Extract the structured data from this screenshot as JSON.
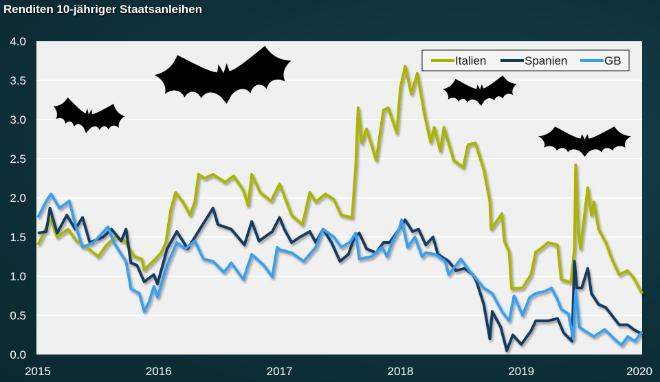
{
  "chart_data": {
    "type": "line",
    "title": "Renditen 10-jähriger Staatsanleihen",
    "xlabel": "",
    "ylabel": "",
    "xlim": [
      2015,
      2020
    ],
    "ylim": [
      0,
      4
    ],
    "xticks": [
      "2015",
      "2016",
      "2017",
      "2018",
      "2019",
      "2020"
    ],
    "yticks": [
      "0.0",
      "0.5",
      "1.0",
      "1.5",
      "2.0",
      "2.5",
      "3.0",
      "3.5",
      "4.0"
    ],
    "grid": true,
    "legend": "top-right",
    "decorations": [
      "bat-icon",
      "bat-icon",
      "bat-icon",
      "bat-icon"
    ],
    "series": [
      {
        "name": "Italien",
        "color": "#a9b500",
        "points": [
          [
            2015.0,
            1.4
          ],
          [
            2015.05,
            1.55
          ],
          [
            2015.1,
            1.75
          ],
          [
            2015.16,
            1.5
          ],
          [
            2015.25,
            1.6
          ],
          [
            2015.32,
            1.45
          ],
          [
            2015.42,
            1.35
          ],
          [
            2015.5,
            1.25
          ],
          [
            2015.57,
            1.4
          ],
          [
            2015.64,
            1.5
          ],
          [
            2015.72,
            1.45
          ],
          [
            2015.8,
            1.25
          ],
          [
            2015.86,
            1.22
          ],
          [
            2015.88,
            1.08
          ],
          [
            2015.96,
            1.2
          ],
          [
            2016.02,
            1.3
          ],
          [
            2016.06,
            1.43
          ],
          [
            2016.1,
            1.85
          ],
          [
            2016.14,
            2.07
          ],
          [
            2016.2,
            1.95
          ],
          [
            2016.26,
            1.78
          ],
          [
            2016.3,
            1.95
          ],
          [
            2016.33,
            2.3
          ],
          [
            2016.38,
            2.25
          ],
          [
            2016.45,
            2.3
          ],
          [
            2016.55,
            2.2
          ],
          [
            2016.62,
            2.28
          ],
          [
            2016.7,
            2.1
          ],
          [
            2016.74,
            1.9
          ],
          [
            2016.77,
            2.3
          ],
          [
            2016.84,
            2.07
          ],
          [
            2016.93,
            1.96
          ],
          [
            2017.0,
            2.18
          ],
          [
            2017.1,
            1.78
          ],
          [
            2017.19,
            1.66
          ],
          [
            2017.25,
            2.07
          ],
          [
            2017.3,
            1.95
          ],
          [
            2017.38,
            2.05
          ],
          [
            2017.45,
            1.98
          ],
          [
            2017.51,
            1.78
          ],
          [
            2017.6,
            1.75
          ],
          [
            2017.63,
            2.4
          ],
          [
            2017.65,
            3.15
          ],
          [
            2017.68,
            2.7
          ],
          [
            2017.72,
            2.88
          ],
          [
            2017.8,
            2.48
          ],
          [
            2017.86,
            3.12
          ],
          [
            2017.9,
            3.15
          ],
          [
            2017.97,
            2.83
          ],
          [
            2018.0,
            3.41
          ],
          [
            2018.04,
            3.68
          ],
          [
            2018.09,
            3.33
          ],
          [
            2018.14,
            3.59
          ],
          [
            2018.2,
            3.06
          ],
          [
            2018.25,
            2.71
          ],
          [
            2018.28,
            2.9
          ],
          [
            2018.33,
            2.6
          ],
          [
            2018.36,
            2.9
          ],
          [
            2018.44,
            2.48
          ],
          [
            2018.52,
            2.39
          ],
          [
            2018.56,
            2.68
          ],
          [
            2018.62,
            2.7
          ],
          [
            2018.69,
            2.36
          ],
          [
            2018.74,
            1.96
          ],
          [
            2018.75,
            1.6
          ],
          [
            2018.84,
            1.8
          ],
          [
            2018.86,
            1.45
          ],
          [
            2018.9,
            1.31
          ],
          [
            2018.92,
            0.84
          ],
          [
            2019.01,
            0.85
          ],
          [
            2019.08,
            1.02
          ],
          [
            2019.12,
            1.31
          ],
          [
            2019.16,
            1.35
          ],
          [
            2019.22,
            1.43
          ],
          [
            2019.3,
            1.4
          ],
          [
            2019.33,
            0.96
          ],
          [
            2019.41,
            0.92
          ],
          [
            2019.44,
            1.35
          ],
          [
            2019.45,
            2.42
          ],
          [
            2019.47,
            1.6
          ],
          [
            2019.49,
            1.35
          ],
          [
            2019.55,
            2.13
          ],
          [
            2019.58,
            1.78
          ],
          [
            2019.6,
            1.95
          ],
          [
            2019.64,
            1.6
          ],
          [
            2019.7,
            1.43
          ],
          [
            2019.75,
            1.22
          ],
          [
            2019.81,
            1.02
          ],
          [
            2019.88,
            1.07
          ],
          [
            2019.93,
            0.98
          ],
          [
            2020.0,
            0.78
          ]
        ]
      },
      {
        "name": "Spanien",
        "color": "#163a5f",
        "points": [
          [
            2015.0,
            1.55
          ],
          [
            2015.07,
            1.57
          ],
          [
            2015.1,
            1.87
          ],
          [
            2015.16,
            1.55
          ],
          [
            2015.24,
            1.78
          ],
          [
            2015.31,
            1.6
          ],
          [
            2015.37,
            1.75
          ],
          [
            2015.43,
            1.43
          ],
          [
            2015.54,
            1.5
          ],
          [
            2015.61,
            1.6
          ],
          [
            2015.69,
            1.45
          ],
          [
            2015.73,
            1.6
          ],
          [
            2015.77,
            1.17
          ],
          [
            2015.82,
            1.14
          ],
          [
            2015.88,
            0.93
          ],
          [
            2015.96,
            1.02
          ],
          [
            2015.99,
            0.9
          ],
          [
            2016.07,
            1.35
          ],
          [
            2016.15,
            1.57
          ],
          [
            2016.24,
            1.35
          ],
          [
            2016.34,
            1.6
          ],
          [
            2016.45,
            1.87
          ],
          [
            2016.49,
            1.66
          ],
          [
            2016.6,
            1.6
          ],
          [
            2016.71,
            1.4
          ],
          [
            2016.77,
            1.7
          ],
          [
            2016.83,
            1.45
          ],
          [
            2016.94,
            1.57
          ],
          [
            2017.0,
            1.75
          ],
          [
            2017.04,
            1.6
          ],
          [
            2017.1,
            1.43
          ],
          [
            2017.17,
            1.5
          ],
          [
            2017.25,
            1.57
          ],
          [
            2017.3,
            1.43
          ],
          [
            2017.36,
            1.6
          ],
          [
            2017.43,
            1.43
          ],
          [
            2017.5,
            1.19
          ],
          [
            2017.57,
            1.28
          ],
          [
            2017.62,
            1.5
          ],
          [
            2017.66,
            1.55
          ],
          [
            2017.72,
            1.35
          ],
          [
            2017.8,
            1.3
          ],
          [
            2017.86,
            1.43
          ],
          [
            2017.91,
            1.43
          ],
          [
            2017.99,
            1.6
          ],
          [
            2018.04,
            1.72
          ],
          [
            2018.1,
            1.57
          ],
          [
            2018.15,
            1.6
          ],
          [
            2018.21,
            1.4
          ],
          [
            2018.27,
            1.5
          ],
          [
            2018.31,
            1.28
          ],
          [
            2018.4,
            1.19
          ],
          [
            2018.46,
            1.07
          ],
          [
            2018.53,
            1.1
          ],
          [
            2018.6,
            1.02
          ],
          [
            2018.63,
            0.93
          ],
          [
            2018.69,
            0.64
          ],
          [
            2018.74,
            0.2
          ],
          [
            2018.76,
            0.55
          ],
          [
            2018.83,
            0.35
          ],
          [
            2018.88,
            0.05
          ],
          [
            2018.93,
            0.25
          ],
          [
            2019.0,
            0.13
          ],
          [
            2019.08,
            0.3
          ],
          [
            2019.12,
            0.43
          ],
          [
            2019.22,
            0.43
          ],
          [
            2019.3,
            0.46
          ],
          [
            2019.35,
            0.28
          ],
          [
            2019.42,
            0.17
          ],
          [
            2019.44,
            1.19
          ],
          [
            2019.46,
            0.85
          ],
          [
            2019.5,
            0.85
          ],
          [
            2019.55,
            1.1
          ],
          [
            2019.58,
            0.78
          ],
          [
            2019.64,
            0.64
          ],
          [
            2019.7,
            0.6
          ],
          [
            2019.75,
            0.5
          ],
          [
            2019.81,
            0.38
          ],
          [
            2019.88,
            0.38
          ],
          [
            2019.93,
            0.32
          ],
          [
            2020.0,
            0.26
          ]
        ]
      },
      {
        "name": "GB",
        "color": "#3b9ff0",
        "points": [
          [
            2015.0,
            1.75
          ],
          [
            2015.07,
            1.96
          ],
          [
            2015.11,
            2.05
          ],
          [
            2015.18,
            1.87
          ],
          [
            2015.26,
            1.96
          ],
          [
            2015.31,
            1.66
          ],
          [
            2015.37,
            1.37
          ],
          [
            2015.46,
            1.43
          ],
          [
            2015.58,
            1.63
          ],
          [
            2015.63,
            1.43
          ],
          [
            2015.69,
            1.28
          ],
          [
            2015.73,
            1.19
          ],
          [
            2015.77,
            0.84
          ],
          [
            2015.84,
            0.78
          ],
          [
            2015.88,
            0.55
          ],
          [
            2015.92,
            0.67
          ],
          [
            2015.96,
            0.87
          ],
          [
            2015.99,
            0.73
          ],
          [
            2016.07,
            1.14
          ],
          [
            2016.15,
            1.43
          ],
          [
            2016.22,
            1.35
          ],
          [
            2016.3,
            1.45
          ],
          [
            2016.37,
            1.22
          ],
          [
            2016.45,
            1.19
          ],
          [
            2016.54,
            1.05
          ],
          [
            2016.6,
            1.17
          ],
          [
            2016.7,
            0.96
          ],
          [
            2016.77,
            1.28
          ],
          [
            2016.87,
            1.14
          ],
          [
            2016.94,
            0.99
          ],
          [
            2016.98,
            1.37
          ],
          [
            2017.0,
            1.34
          ],
          [
            2017.1,
            1.3
          ],
          [
            2017.2,
            1.19
          ],
          [
            2017.3,
            1.37
          ],
          [
            2017.36,
            1.6
          ],
          [
            2017.45,
            1.5
          ],
          [
            2017.51,
            1.37
          ],
          [
            2017.58,
            1.43
          ],
          [
            2017.63,
            1.55
          ],
          [
            2017.66,
            1.22
          ],
          [
            2017.76,
            1.25
          ],
          [
            2017.85,
            1.37
          ],
          [
            2017.89,
            1.25
          ],
          [
            2017.93,
            1.43
          ],
          [
            2017.99,
            1.6
          ],
          [
            2018.01,
            1.72
          ],
          [
            2018.06,
            1.37
          ],
          [
            2018.12,
            1.5
          ],
          [
            2018.18,
            1.25
          ],
          [
            2018.21,
            1.3
          ],
          [
            2018.29,
            1.28
          ],
          [
            2018.37,
            1.19
          ],
          [
            2018.4,
            1.02
          ],
          [
            2018.46,
            1.14
          ],
          [
            2018.5,
            1.22
          ],
          [
            2018.57,
            1.07
          ],
          [
            2018.6,
            1.02
          ],
          [
            2018.69,
            0.85
          ],
          [
            2018.76,
            0.78
          ],
          [
            2018.84,
            0.55
          ],
          [
            2018.9,
            0.43
          ],
          [
            2018.94,
            0.75
          ],
          [
            2019.01,
            0.5
          ],
          [
            2019.07,
            0.73
          ],
          [
            2019.12,
            0.78
          ],
          [
            2019.2,
            0.81
          ],
          [
            2019.25,
            0.85
          ],
          [
            2019.3,
            0.7
          ],
          [
            2019.33,
            0.58
          ],
          [
            2019.39,
            0.52
          ],
          [
            2019.43,
            0.2
          ],
          [
            2019.45,
            0.81
          ],
          [
            2019.48,
            0.35
          ],
          [
            2019.54,
            0.29
          ],
          [
            2019.6,
            0.23
          ],
          [
            2019.69,
            0.32
          ],
          [
            2019.77,
            0.2
          ],
          [
            2019.83,
            0.12
          ],
          [
            2019.88,
            0.23
          ],
          [
            2019.94,
            0.17
          ],
          [
            2020.0,
            0.29
          ]
        ]
      }
    ]
  }
}
